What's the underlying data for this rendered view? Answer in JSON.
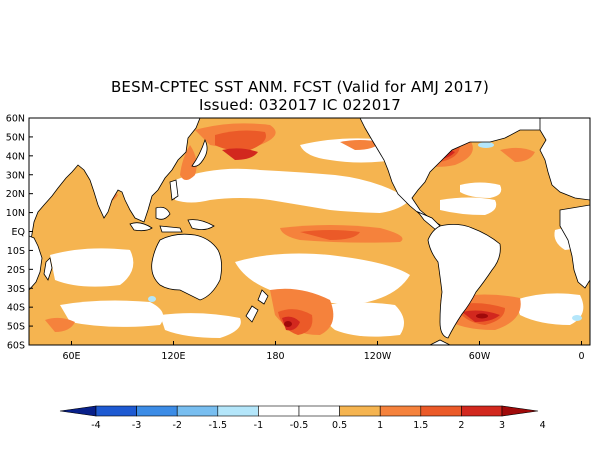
{
  "title_line1": "BESM-CPTEC SST ANM. FCST  (Valid for AMJ 2017)",
  "title_line2": "Issued:  032017 IC 022017",
  "lat_labels": [
    "60N",
    "50N",
    "40N",
    "30N",
    "20N",
    "10N",
    "EQ",
    "10S",
    "20S",
    "30S",
    "40S",
    "50S",
    "60S"
  ],
  "lon_labels": [
    "60E",
    "120E",
    "180",
    "120W",
    "60W",
    "0"
  ],
  "colorbar": {
    "bin_colors": [
      "#08208a",
      "#1e5ad2",
      "#3c8ce6",
      "#78bef0",
      "#b4e6fa",
      "#ffffff",
      "#ffffff",
      "#f5b450",
      "#f5823c",
      "#eb5a28",
      "#d2281e",
      "#a00a0a"
    ],
    "tick_labels": [
      "-4",
      "-3",
      "-2",
      "-1.5",
      "-1",
      "-0.5",
      "0.5",
      "1",
      "1.5",
      "2",
      "3",
      "4"
    ]
  },
  "legend_colors": {
    "p05": "#f5b450",
    "p10": "#f5823c",
    "p15": "#eb5a28",
    "p20": "#d2281e",
    "p30": "#a00a0a",
    "n05": "#b4e6fa",
    "land": "#ffffff",
    "coast": "#000000"
  }
}
